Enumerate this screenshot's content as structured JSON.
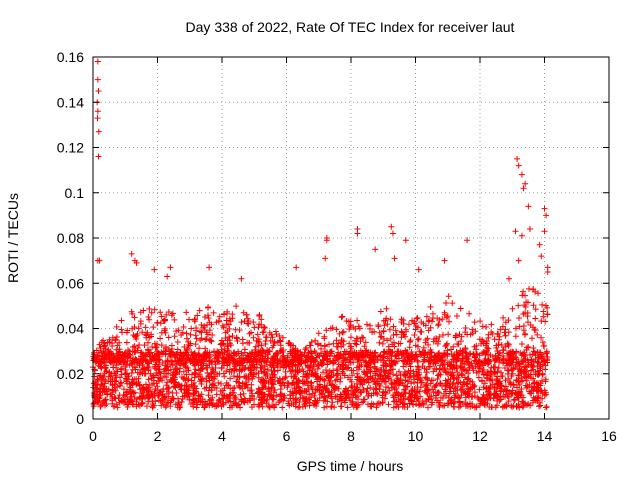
{
  "chart_data": {
    "type": "scatter",
    "title": "Day 338 of 2022, Rate Of TEC Index for receiver laut",
    "xlabel": "GPS time / hours",
    "ylabel": "ROTI / TECUs",
    "xlim": [
      0,
      16
    ],
    "ylim": [
      0,
      0.16
    ],
    "xticks": [
      0,
      2,
      4,
      6,
      8,
      10,
      12,
      14,
      16
    ],
    "yticks": [
      0,
      0.02,
      0.04,
      0.06,
      0.08,
      0.1,
      0.12,
      0.14,
      0.16
    ],
    "xtick_labels": [
      "0",
      "2",
      "4",
      "6",
      "8",
      "10",
      "12",
      "14",
      "16"
    ],
    "ytick_labels": [
      "0",
      "0.02",
      "0.04",
      "0.06",
      "0.08",
      "0.1",
      "0.12",
      "0.14",
      "0.16"
    ],
    "grid": true,
    "marker": "+",
    "color": "#ff0000",
    "data_range_hours": [
      0,
      14.1
    ],
    "baseline_band": [
      0.005,
      0.03
    ],
    "outliers": [
      [
        0.15,
        0.158
      ],
      [
        0.15,
        0.15
      ],
      [
        0.17,
        0.145
      ],
      [
        0.13,
        0.14
      ],
      [
        0.15,
        0.136
      ],
      [
        0.14,
        0.133
      ],
      [
        0.18,
        0.127
      ],
      [
        0.17,
        0.116
      ],
      [
        0.15,
        0.07
      ],
      [
        0.2,
        0.07
      ],
      [
        1.2,
        0.073
      ],
      [
        1.3,
        0.07
      ],
      [
        1.35,
        0.069
      ],
      [
        1.9,
        0.066
      ],
      [
        2.4,
        0.067
      ],
      [
        2.3,
        0.063
      ],
      [
        3.6,
        0.067
      ],
      [
        4.6,
        0.062
      ],
      [
        6.3,
        0.067
      ],
      [
        7.25,
        0.08
      ],
      [
        7.25,
        0.079
      ],
      [
        7.2,
        0.071
      ],
      [
        8.2,
        0.084
      ],
      [
        8.2,
        0.082
      ],
      [
        8.75,
        0.075
      ],
      [
        9.25,
        0.085
      ],
      [
        9.3,
        0.082
      ],
      [
        9.7,
        0.079
      ],
      [
        9.35,
        0.071
      ],
      [
        10.1,
        0.066
      ],
      [
        10.9,
        0.07
      ],
      [
        11.6,
        0.079
      ],
      [
        13.15,
        0.115
      ],
      [
        13.2,
        0.112
      ],
      [
        13.3,
        0.108
      ],
      [
        13.4,
        0.104
      ],
      [
        13.35,
        0.102
      ],
      [
        13.5,
        0.094
      ],
      [
        13.1,
        0.083
      ],
      [
        13.55,
        0.084
      ],
      [
        13.3,
        0.081
      ],
      [
        14.0,
        0.093
      ],
      [
        14.05,
        0.09
      ],
      [
        14.0,
        0.083
      ],
      [
        13.85,
        0.077
      ],
      [
        14.1,
        0.067
      ],
      [
        14.1,
        0.065
      ],
      [
        13.9,
        0.072
      ],
      [
        13.2,
        0.07
      ],
      [
        12.9,
        0.062
      ]
    ],
    "envelope": [
      [
        0,
        0.03
      ],
      [
        0.3,
        0.035
      ],
      [
        0.6,
        0.04
      ],
      [
        1.0,
        0.045
      ],
      [
        1.5,
        0.052
      ],
      [
        2.0,
        0.048
      ],
      [
        2.5,
        0.05
      ],
      [
        3.0,
        0.047
      ],
      [
        3.5,
        0.05
      ],
      [
        4.0,
        0.046
      ],
      [
        4.5,
        0.052
      ],
      [
        5.0,
        0.048
      ],
      [
        5.5,
        0.042
      ],
      [
        6.0,
        0.035
      ],
      [
        6.5,
        0.03
      ],
      [
        7.0,
        0.038
      ],
      [
        7.5,
        0.045
      ],
      [
        8.0,
        0.046
      ],
      [
        8.5,
        0.042
      ],
      [
        9.0,
        0.05
      ],
      [
        9.5,
        0.046
      ],
      [
        10.0,
        0.044
      ],
      [
        10.5,
        0.05
      ],
      [
        11.0,
        0.055
      ],
      [
        11.5,
        0.048
      ],
      [
        12.0,
        0.044
      ],
      [
        12.5,
        0.042
      ],
      [
        13.0,
        0.05
      ],
      [
        13.5,
        0.06
      ],
      [
        14.1,
        0.055
      ]
    ]
  }
}
